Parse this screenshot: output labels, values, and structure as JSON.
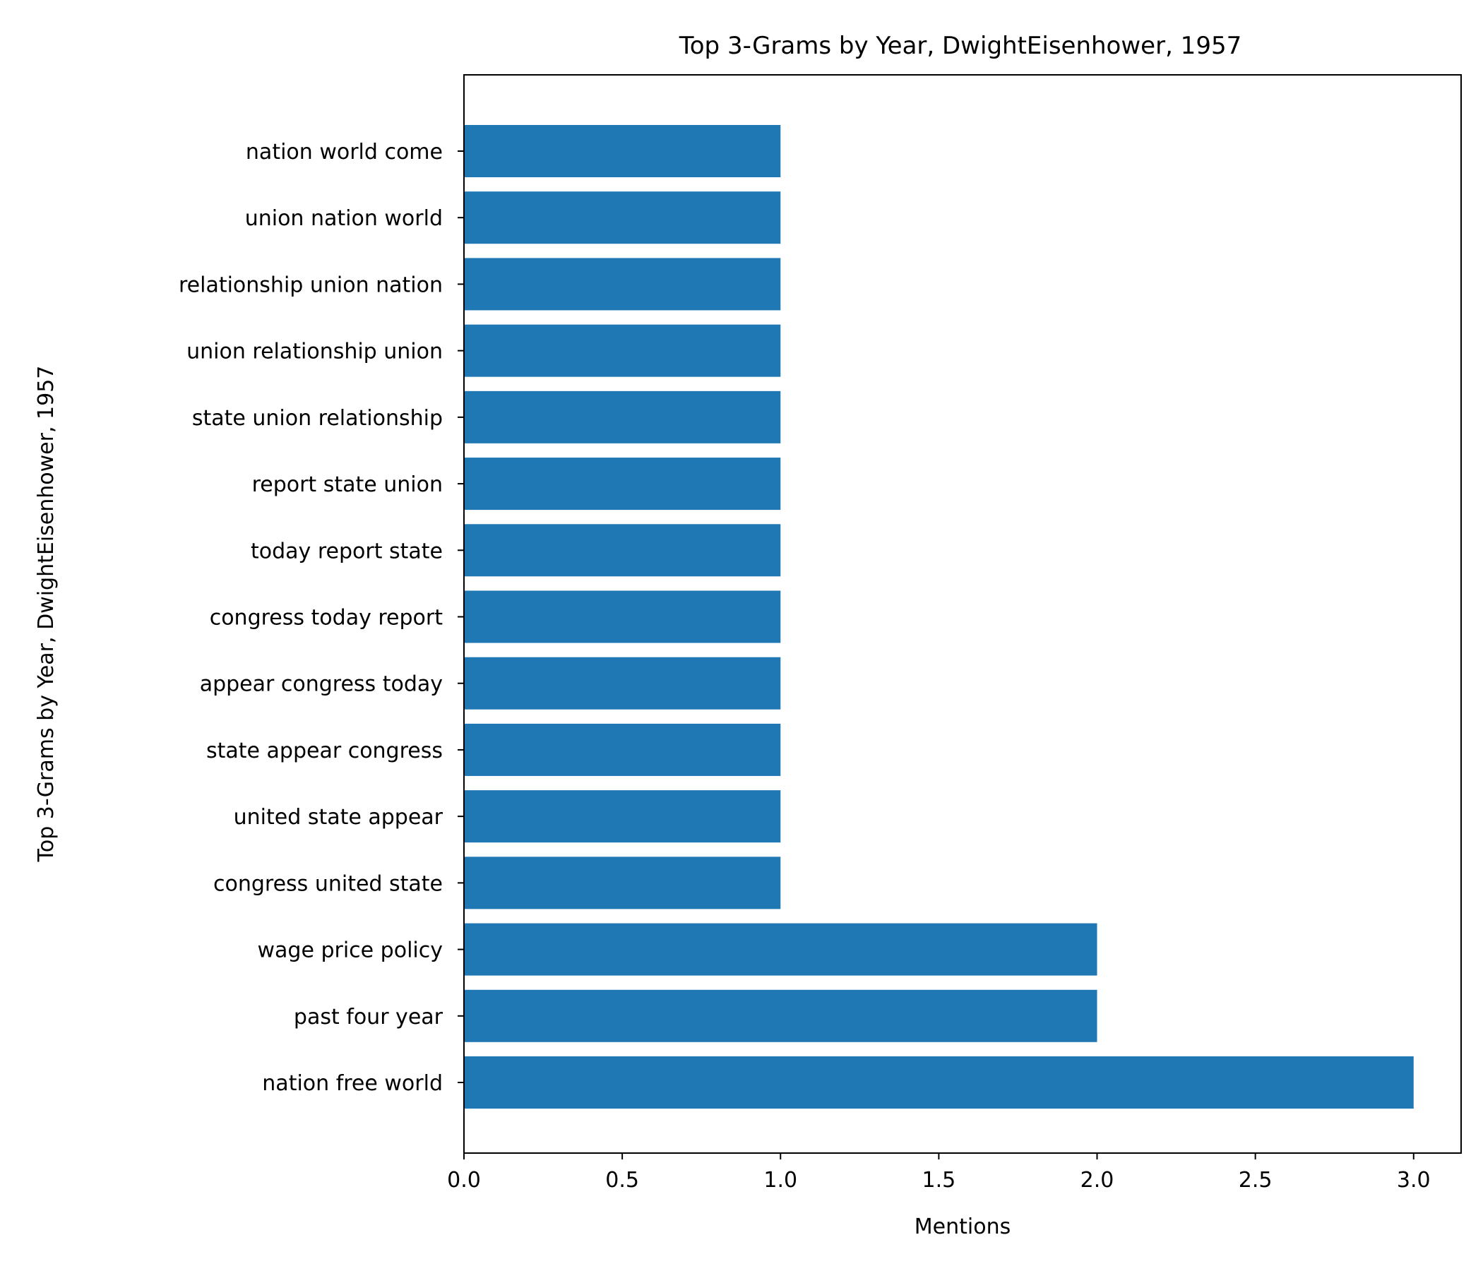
{
  "chart_data": {
    "type": "bar",
    "orientation": "horizontal",
    "title": "Top 3-Grams by Year, DwightEisenhower, 1957",
    "xlabel": "Mentions",
    "ylabel": "Top 3-Grams by Year, DwightEisenhower, 1957",
    "categories": [
      "nation free world",
      "past four year",
      "wage price policy",
      "congress united state",
      "united state appear",
      "state appear congress",
      "appear congress today",
      "congress today report",
      "today report state",
      "report state union",
      "state union relationship",
      "union relationship union",
      "relationship union nation",
      "union nation world",
      "nation world come"
    ],
    "values": [
      3,
      2,
      2,
      1,
      1,
      1,
      1,
      1,
      1,
      1,
      1,
      1,
      1,
      1,
      1
    ],
    "xlim": [
      0,
      3.15
    ],
    "xticks": [
      "0.0",
      "0.5",
      "1.0",
      "1.5",
      "2.0",
      "2.5",
      "3.0"
    ],
    "bar_color": "#1f77b4",
    "grid": false
  }
}
